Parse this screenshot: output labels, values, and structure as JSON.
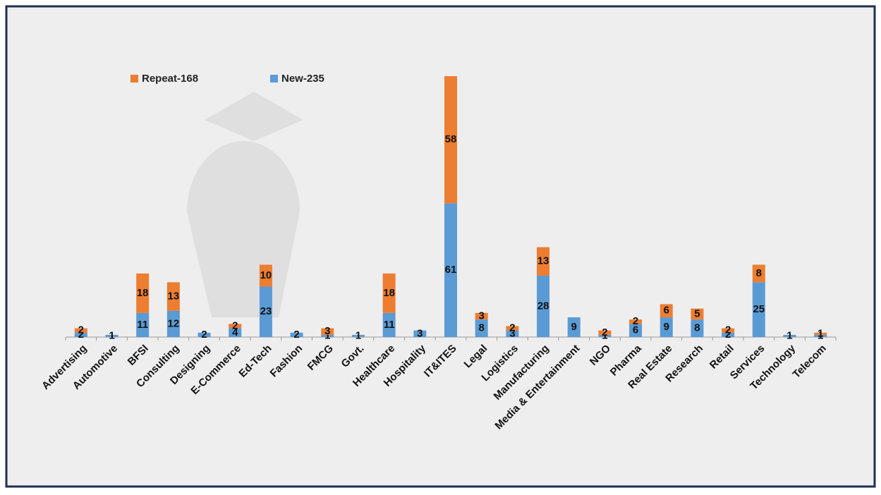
{
  "chart_data": {
    "type": "stacked-bar",
    "categories": [
      "Advertising",
      "Automotive",
      "BFSI",
      "Consulting",
      "Designing",
      "E-Commerce",
      "Ed-Tech",
      "Fashion",
      "FMCG",
      "Govt.",
      "Healthcare",
      "Hospitality",
      "IT&ITES",
      "Legal",
      "Logistics",
      "Manufacturing",
      "Media & Entertainment",
      "NGO",
      "Pharma",
      "Real Estate",
      "Research",
      "Retail",
      "Services",
      "Technology",
      "Telecom"
    ],
    "series": [
      {
        "name": "New-235",
        "color": "#5b9bd5",
        "values": [
          2,
          1,
          11,
          12,
          2,
          4,
          23,
          2,
          1,
          1,
          11,
          3,
          61,
          8,
          3,
          28,
          9,
          1,
          6,
          9,
          8,
          2,
          25,
          1,
          1
        ]
      },
      {
        "name": "Repeat-168",
        "color": "#ed7d31",
        "values": [
          2,
          null,
          18,
          13,
          null,
          2,
          10,
          null,
          3,
          null,
          18,
          null,
          58,
          3,
          2,
          13,
          null,
          2,
          2,
          6,
          5,
          2,
          8,
          null,
          1
        ]
      }
    ],
    "legend": "top-left"
  }
}
